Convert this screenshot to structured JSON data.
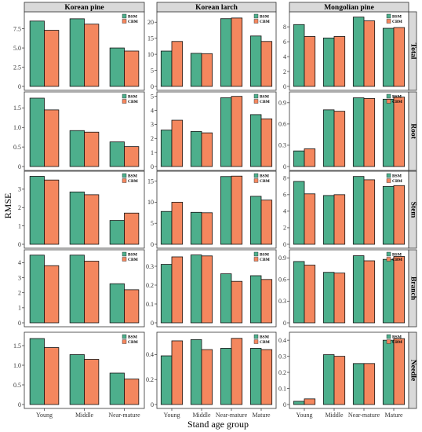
{
  "figure": {
    "ylabel": "RMSE",
    "xlabel": "Stand age group",
    "species": [
      "Korean pine",
      "Korean larch",
      "Mongolian pine"
    ],
    "components": [
      "Total",
      "Root",
      "Stem",
      "Branch",
      "Needle"
    ],
    "legend": [
      "BSM",
      "CBM"
    ],
    "colors": {
      "BSM": "#4daf8c",
      "CBM": "#f4875e"
    }
  },
  "chart_data": [
    {
      "type": "bar",
      "species": "Korean pine",
      "component": "Total",
      "categories": [
        "Young",
        "Middle",
        "Near-mature"
      ],
      "series": [
        {
          "name": "BSM",
          "values": [
            8.5,
            8.8,
            5.0
          ]
        },
        {
          "name": "CBM",
          "values": [
            7.3,
            8.1,
            4.6
          ]
        }
      ],
      "ylim": [
        0,
        9.4
      ],
      "yticks": [
        "0",
        "2.5",
        "5.0",
        "7.5"
      ],
      "ytick_values": [
        0,
        2.5,
        5.0,
        7.5
      ]
    },
    {
      "type": "bar",
      "species": "Korean larch",
      "component": "Total",
      "categories": [
        "Young",
        "Middle",
        "Near-mature",
        "Mature"
      ],
      "series": [
        {
          "name": "BSM",
          "values": [
            11.0,
            10.3,
            21.1,
            15.7
          ]
        },
        {
          "name": "CBM",
          "values": [
            14.0,
            10.2,
            21.3,
            14.0
          ]
        }
      ],
      "ylim": [
        0,
        22.5
      ],
      "yticks": [
        "0",
        "5",
        "10",
        "15",
        "20"
      ],
      "ytick_values": [
        0,
        5,
        10,
        15,
        20
      ]
    },
    {
      "type": "bar",
      "species": "Mongolian pine",
      "component": "Total",
      "categories": [
        "Young",
        "Middle",
        "Near-mature",
        "Mature"
      ],
      "series": [
        {
          "name": "BSM",
          "values": [
            8.3,
            6.5,
            9.3,
            7.8
          ]
        },
        {
          "name": "CBM",
          "values": [
            6.7,
            6.7,
            8.8,
            7.9
          ]
        }
      ],
      "ylim": [
        0,
        9.7
      ],
      "yticks": [
        "0",
        "2",
        "4",
        "6",
        "8"
      ],
      "ytick_values": [
        0,
        2,
        4,
        6,
        8
      ]
    },
    {
      "type": "bar",
      "species": "Korean pine",
      "component": "Root",
      "categories": [
        "Young",
        "Middle",
        "Near-mature"
      ],
      "series": [
        {
          "name": "BSM",
          "values": [
            1.75,
            0.92,
            0.63
          ]
        },
        {
          "name": "CBM",
          "values": [
            1.45,
            0.88,
            0.51
          ]
        }
      ],
      "ylim": [
        0,
        1.85
      ],
      "yticks": [
        "0",
        "0.5",
        "1.0",
        "1.5"
      ],
      "ytick_values": [
        0,
        0.5,
        1.0,
        1.5
      ]
    },
    {
      "type": "bar",
      "species": "Korean larch",
      "component": "Root",
      "categories": [
        "Young",
        "Middle",
        "Near-mature",
        "Mature"
      ],
      "series": [
        {
          "name": "BSM",
          "values": [
            2.6,
            2.5,
            4.9,
            3.7
          ]
        },
        {
          "name": "CBM",
          "values": [
            3.3,
            2.4,
            5.0,
            3.4
          ]
        }
      ],
      "ylim": [
        0,
        5.15
      ],
      "yticks": [
        "0",
        "1",
        "2",
        "3",
        "4",
        "5"
      ],
      "ytick_values": [
        0,
        1,
        2,
        3,
        4,
        5
      ]
    },
    {
      "type": "bar",
      "species": "Mongolian pine",
      "component": "Root",
      "categories": [
        "Young",
        "Middle",
        "Near-mature",
        "Mature"
      ],
      "series": [
        {
          "name": "BSM",
          "values": [
            0.22,
            0.8,
            0.97,
            0.95
          ]
        },
        {
          "name": "CBM",
          "values": [
            0.25,
            0.78,
            0.96,
            0.98
          ]
        }
      ],
      "ylim": [
        0,
        1.02
      ],
      "yticks": [
        "0",
        "0.3",
        "0.6",
        "0.9"
      ],
      "ytick_values": [
        0,
        0.3,
        0.6,
        0.9
      ]
    },
    {
      "type": "bar",
      "species": "Korean pine",
      "component": "Stem",
      "categories": [
        "Young",
        "Middle",
        "Near-mature"
      ],
      "series": [
        {
          "name": "BSM",
          "values": [
            3.7,
            2.85,
            1.3
          ]
        },
        {
          "name": "CBM",
          "values": [
            3.5,
            2.7,
            1.7
          ]
        }
      ],
      "ylim": [
        0,
        3.85
      ],
      "yticks": [
        "0",
        "1",
        "2",
        "3"
      ],
      "ytick_values": [
        0,
        1,
        2,
        3
      ]
    },
    {
      "type": "bar",
      "species": "Korean larch",
      "component": "Stem",
      "categories": [
        "Young",
        "Middle",
        "Near-mature",
        "Mature"
      ],
      "series": [
        {
          "name": "BSM",
          "values": [
            7.8,
            7.6,
            16.1,
            11.4
          ]
        },
        {
          "name": "CBM",
          "values": [
            10.0,
            7.5,
            16.2,
            10.5
          ]
        }
      ],
      "ylim": [
        0,
        16.8
      ],
      "yticks": [
        "0",
        "5",
        "10",
        "15"
      ],
      "ytick_values": [
        0,
        5,
        10,
        15
      ]
    },
    {
      "type": "bar",
      "species": "Mongolian pine",
      "component": "Stem",
      "categories": [
        "Young",
        "Middle",
        "Near-mature",
        "Mature"
      ],
      "series": [
        {
          "name": "BSM",
          "values": [
            7.6,
            5.9,
            8.2,
            7.0
          ]
        },
        {
          "name": "CBM",
          "values": [
            6.1,
            6.0,
            7.8,
            7.1
          ]
        }
      ],
      "ylim": [
        0,
        8.55
      ],
      "yticks": [
        "0",
        "2",
        "4",
        "6",
        "8"
      ],
      "ytick_values": [
        0,
        2,
        4,
        6,
        8
      ]
    },
    {
      "type": "bar",
      "species": "Korean pine",
      "component": "Branch",
      "categories": [
        "Young",
        "Middle",
        "Near-mature"
      ],
      "series": [
        {
          "name": "BSM",
          "values": [
            4.5,
            4.5,
            2.6
          ]
        },
        {
          "name": "CBM",
          "values": [
            3.8,
            4.1,
            2.2
          ]
        }
      ],
      "ylim": [
        0,
        4.7
      ],
      "yticks": [
        "0",
        "1",
        "2",
        "3",
        "4"
      ],
      "ytick_values": [
        0,
        1,
        2,
        3,
        4
      ]
    },
    {
      "type": "bar",
      "species": "Korean larch",
      "component": "Branch",
      "categories": [
        "Young",
        "Middle",
        "Near-mature",
        "Mature"
      ],
      "series": [
        {
          "name": "BSM",
          "values": [
            0.31,
            0.36,
            0.26,
            0.25
          ]
        },
        {
          "name": "CBM",
          "values": [
            0.35,
            0.355,
            0.22,
            0.23
          ]
        }
      ],
      "ylim": [
        0,
        0.375
      ],
      "yticks": [
        "0",
        "0.1",
        "0.2",
        "0.3"
      ],
      "ytick_values": [
        0,
        0.1,
        0.2,
        0.3
      ]
    },
    {
      "type": "bar",
      "species": "Mongolian pine",
      "component": "Branch",
      "categories": [
        "Young",
        "Middle",
        "Near-mature",
        "Mature"
      ],
      "series": [
        {
          "name": "BSM",
          "values": [
            0.85,
            0.7,
            0.93,
            0.88
          ]
        },
        {
          "name": "CBM",
          "values": [
            0.8,
            0.69,
            0.86,
            0.92
          ]
        }
      ],
      "ylim": [
        0,
        0.98
      ],
      "yticks": [
        "0",
        "0.3",
        "0.6",
        "0.9"
      ],
      "ytick_values": [
        0,
        0.3,
        0.6,
        0.9
      ]
    },
    {
      "type": "bar",
      "species": "Korean pine",
      "component": "Needle",
      "categories": [
        "Young",
        "Middle",
        "Near-mature"
      ],
      "series": [
        {
          "name": "BSM",
          "values": [
            1.68,
            1.27,
            0.8
          ]
        },
        {
          "name": "CBM",
          "values": [
            1.45,
            1.15,
            0.65
          ]
        }
      ],
      "ylim": [
        0,
        1.78
      ],
      "yticks": [
        "0",
        "0.5",
        "1.0",
        "1.5"
      ],
      "ytick_values": [
        0,
        0.5,
        1.0,
        1.5
      ]
    },
    {
      "type": "bar",
      "species": "Korean larch",
      "component": "Needle",
      "categories": [
        "Young",
        "Middle",
        "Near-mature",
        "Mature"
      ],
      "series": [
        {
          "name": "BSM",
          "values": [
            0.39,
            0.52,
            0.45,
            0.45
          ]
        },
        {
          "name": "CBM",
          "values": [
            0.51,
            0.44,
            0.53,
            0.44
          ]
        }
      ],
      "ylim": [
        0,
        0.56
      ],
      "yticks": [
        "0",
        "0.2",
        "0.4"
      ],
      "ytick_values": [
        0,
        0.2,
        0.4
      ]
    },
    {
      "type": "bar",
      "species": "Mongolian pine",
      "component": "Needle",
      "categories": [
        "Young",
        "Middle",
        "Near-mature",
        "Mature"
      ],
      "series": [
        {
          "name": "BSM",
          "values": [
            0.02,
            0.31,
            0.255,
            0.4
          ]
        },
        {
          "name": "CBM",
          "values": [
            0.035,
            0.3,
            0.255,
            0.41
          ]
        }
      ],
      "ylim": [
        0,
        0.435
      ],
      "yticks": [
        "0",
        "0.1",
        "0.2",
        "0.3",
        "0.4"
      ],
      "ytick_values": [
        0,
        0.1,
        0.2,
        0.3,
        0.4
      ]
    }
  ]
}
